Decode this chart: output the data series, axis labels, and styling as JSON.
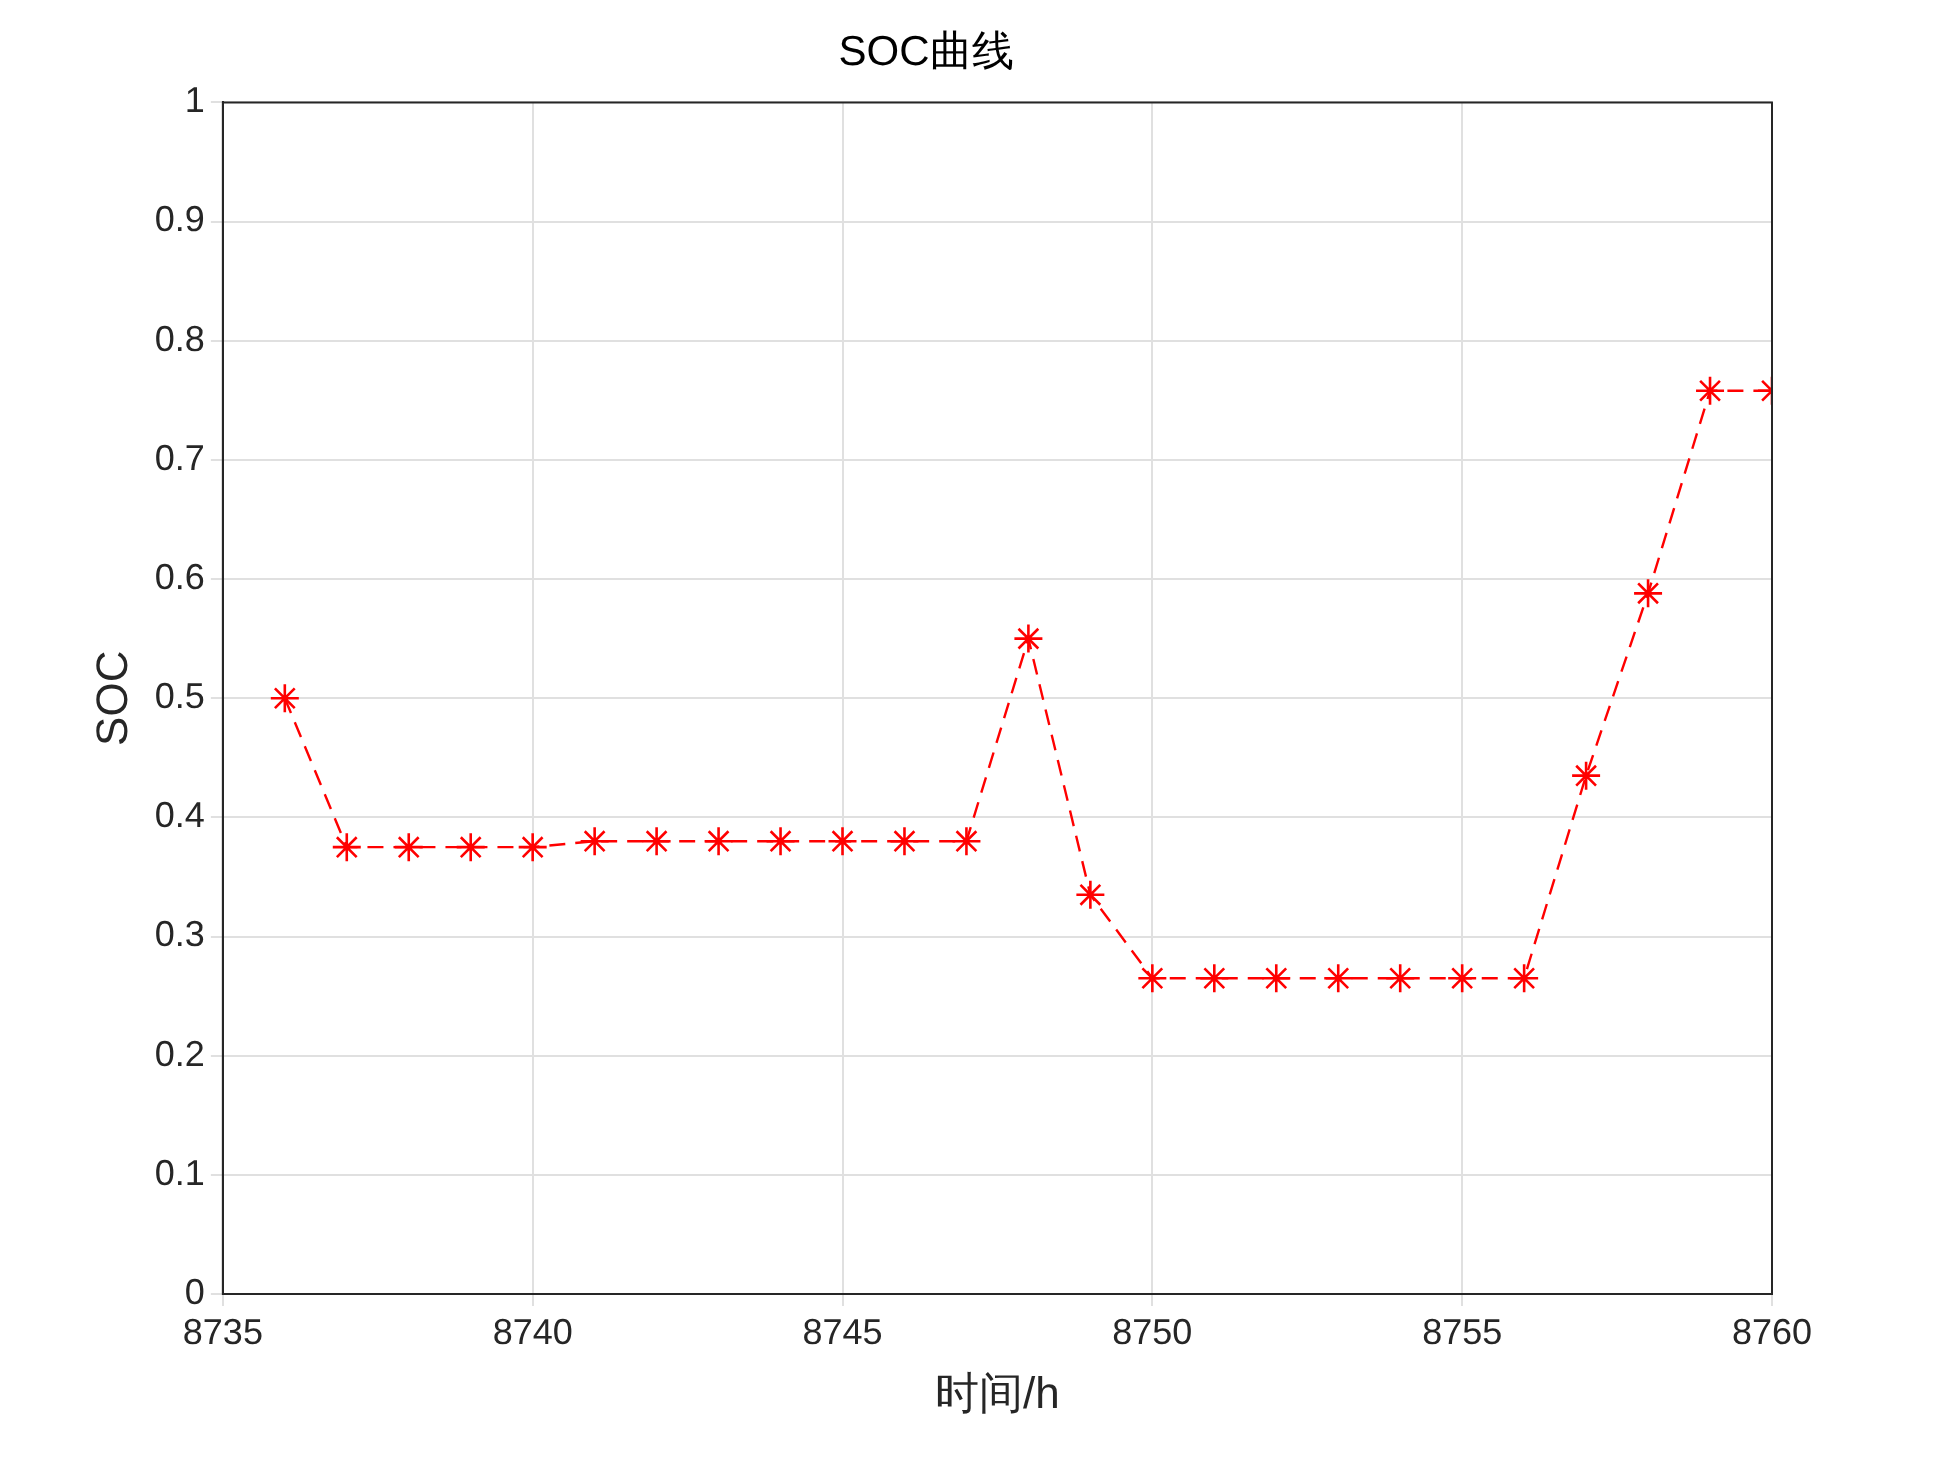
{
  "chart_data": {
    "type": "line",
    "title": "SOC曲线",
    "xlabel": "时间/h",
    "ylabel": "SOC",
    "x": [
      8736,
      8737,
      8738,
      8739,
      8740,
      8741,
      8742,
      8743,
      8744,
      8745,
      8746,
      8747,
      8748,
      8749,
      8750,
      8751,
      8752,
      8753,
      8754,
      8755,
      8756,
      8757,
      8758,
      8759,
      8760
    ],
    "series": [
      {
        "color": "#ff0000",
        "values": [
          0.5,
          0.375,
          0.375,
          0.375,
          0.375,
          0.38,
          0.38,
          0.38,
          0.38,
          0.38,
          0.38,
          0.38,
          0.55,
          0.335,
          0.265,
          0.265,
          0.265,
          0.265,
          0.265,
          0.265,
          0.265,
          0.435,
          0.588,
          0.758,
          0.758
        ]
      }
    ],
    "xlim": [
      8735,
      8760
    ],
    "xticks": [
      8735,
      8740,
      8745,
      8750,
      8755,
      8760
    ],
    "ylim": [
      0,
      1
    ],
    "yticks": [
      0,
      0.1,
      0.2,
      0.3,
      0.4,
      0.5,
      0.6,
      0.7,
      0.8,
      0.9,
      1
    ],
    "grid": true,
    "marker": "cross",
    "line_style": "dashed",
    "legend": false
  }
}
